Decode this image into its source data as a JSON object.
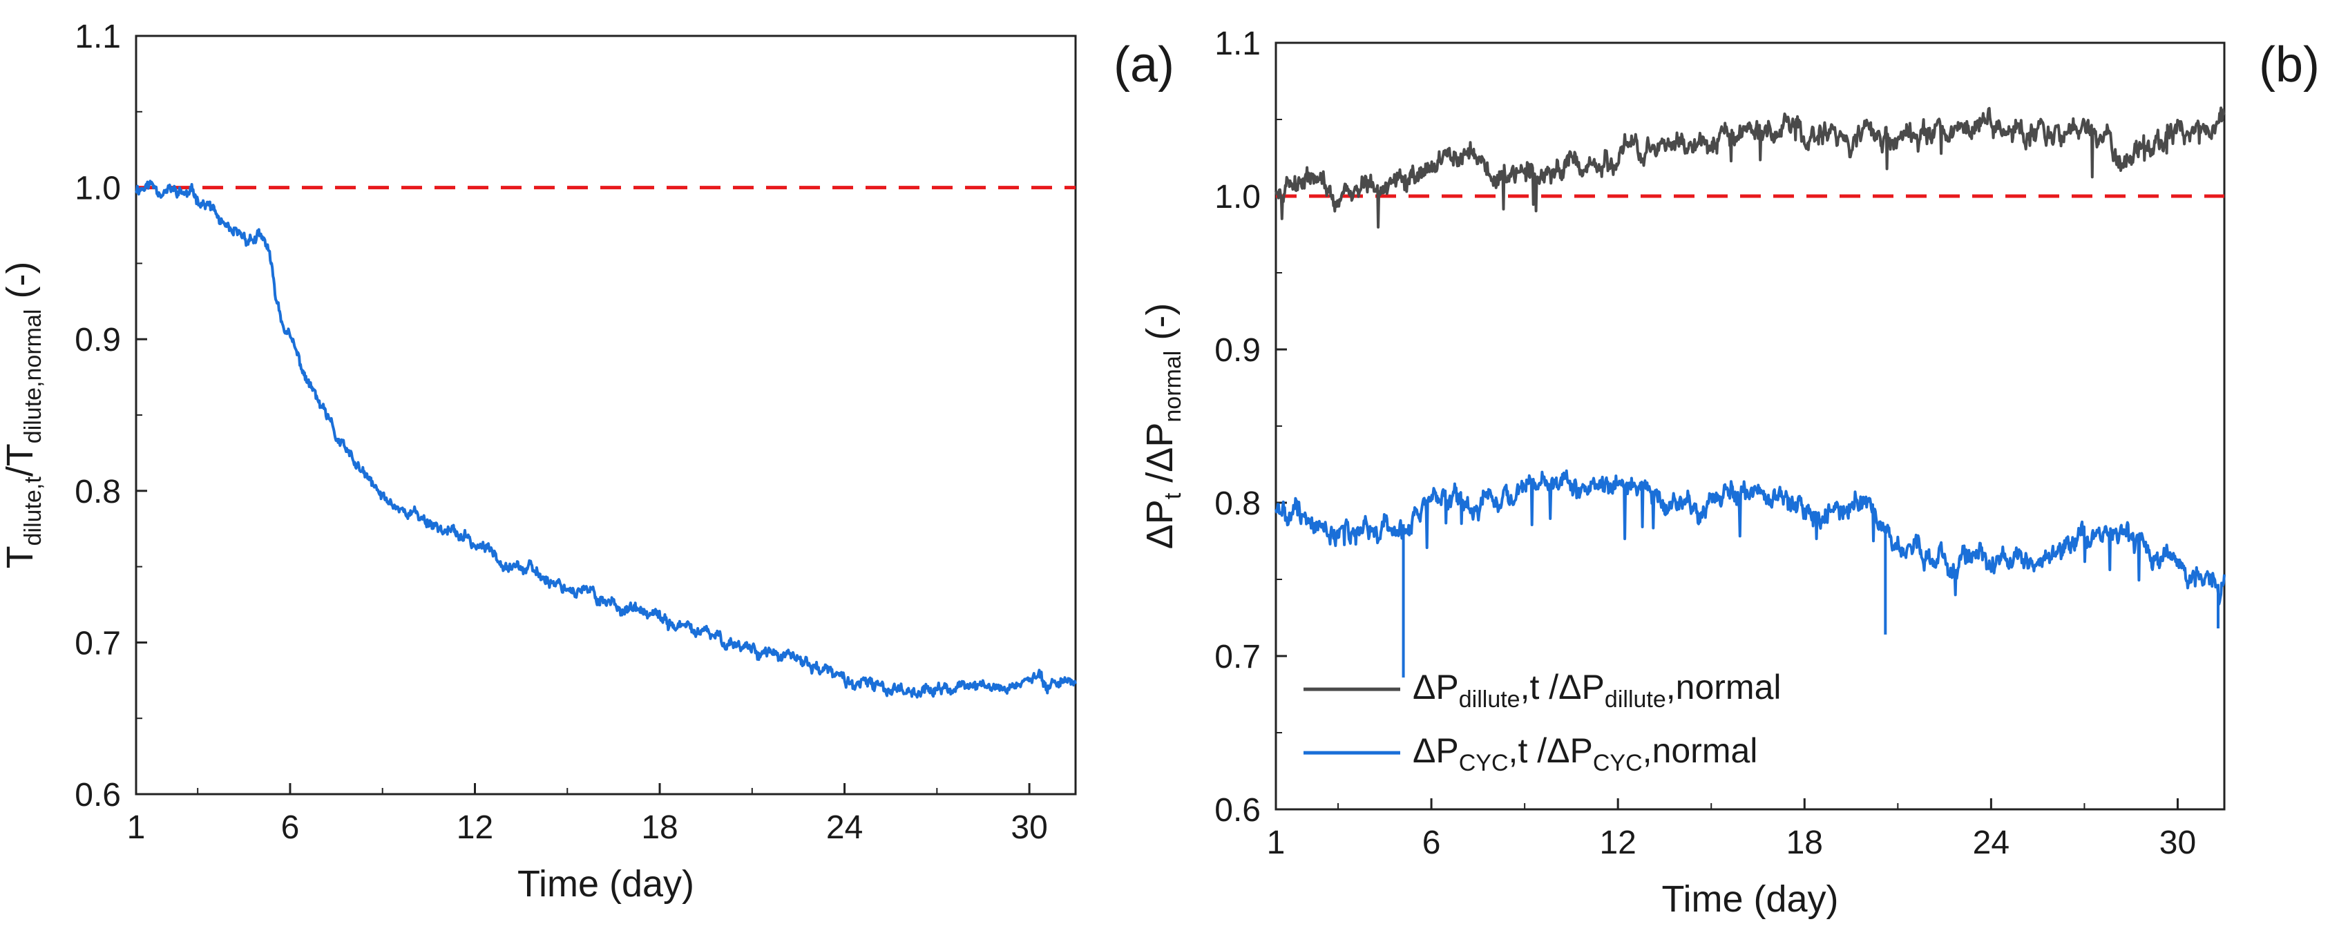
{
  "chart_data": [
    {
      "panel": "(a)",
      "type": "line",
      "xlabel": "Time (day)",
      "ylabel": {
        "main": "T",
        "sub1": "dilute,t",
        "mid": "/T",
        "sub2": "dilute,normal",
        "tail": " (-)"
      },
      "xlim": [
        1,
        31.5
      ],
      "ylim": [
        0.6,
        1.1
      ],
      "xticks": [
        "1",
        "6",
        "12",
        "18",
        "24",
        "30"
      ],
      "yticks": [
        "0.6",
        "0.7",
        "0.8",
        "0.9",
        "1.0",
        "1.1"
      ],
      "reference_line": {
        "y": 1.0,
        "color": "#e8191c",
        "style": "dashed"
      },
      "series": [
        {
          "name": "T_dilute,t / T_dilute,normal",
          "color": "#1a6fd8",
          "x": [
            1,
            1.5,
            2,
            3,
            3.5,
            4,
            4.5,
            5,
            5.3,
            5.5,
            5.7,
            6,
            6.5,
            7,
            7.5,
            8,
            9,
            10,
            11,
            12,
            13,
            14,
            15,
            16,
            17,
            18,
            19,
            20,
            21,
            22,
            23,
            24,
            25,
            26,
            27,
            28,
            29,
            30,
            31.5
          ],
          "y": [
            1.0,
            1.002,
            0.998,
            0.994,
            0.985,
            0.968,
            0.967,
            0.966,
            0.96,
            0.93,
            0.915,
            0.9,
            0.875,
            0.855,
            0.835,
            0.82,
            0.795,
            0.785,
            0.775,
            0.765,
            0.755,
            0.745,
            0.737,
            0.73,
            0.722,
            0.715,
            0.708,
            0.702,
            0.697,
            0.69,
            0.685,
            0.675,
            0.67,
            0.67,
            0.668,
            0.672,
            0.67,
            0.675,
            0.675
          ]
        }
      ]
    },
    {
      "panel": "(b)",
      "type": "line",
      "xlabel": "Time (day)",
      "ylabel": {
        "main": "ΔP",
        "sub1": "t",
        "mid": " /ΔP",
        "sub2": "normal",
        "tail": " (-)"
      },
      "xlim": [
        1,
        31.5
      ],
      "ylim": [
        0.6,
        1.1
      ],
      "xticks": [
        "1",
        "6",
        "12",
        "18",
        "24",
        "30"
      ],
      "yticks": [
        "0.6",
        "0.7",
        "0.8",
        "0.9",
        "1.0",
        "1.1"
      ],
      "reference_line": {
        "y": 1.0,
        "color": "#e8191c",
        "style": "dashed"
      },
      "legend": {
        "placement": "bottom-left",
        "entries": [
          {
            "pre": "ΔP",
            "sub": "dillute",
            "mid": ",t /ΔP",
            "sub2": "dillute",
            "post": ",normal",
            "color": "#4a4a4a"
          },
          {
            "pre": "ΔP",
            "sub": "CYC",
            "mid": ",t /ΔP",
            "sub2": "CYC",
            "post": ",normal",
            "color": "#1a6fd8"
          }
        ]
      },
      "series": [
        {
          "name": "ΔP_dillute,t / ΔP_dillute,normal",
          "color": "#4a4a4a",
          "x": [
            1,
            2,
            3,
            4,
            5,
            6,
            7,
            8,
            9,
            10,
            11,
            12,
            13,
            14,
            15,
            16,
            17,
            18,
            19,
            20,
            21,
            22,
            23,
            24,
            25,
            26,
            27,
            28,
            29,
            30,
            31.5
          ],
          "y": [
            1.008,
            1.01,
            1.0,
            1.005,
            1.01,
            1.02,
            1.03,
            1.015,
            1.01,
            1.015,
            1.02,
            1.025,
            1.03,
            1.035,
            1.035,
            1.04,
            1.045,
            1.04,
            1.04,
            1.04,
            1.035,
            1.04,
            1.045,
            1.05,
            1.045,
            1.04,
            1.045,
            1.025,
            1.03,
            1.04,
            1.05
          ]
        },
        {
          "name": "ΔP_CYC,t / ΔP_CYC,normal",
          "color": "#1a6fd8",
          "x": [
            1,
            2,
            3,
            4,
            5,
            6,
            7,
            8,
            9,
            10,
            11,
            12,
            13,
            14,
            15,
            16,
            17,
            18,
            19,
            20,
            21,
            22,
            23,
            24,
            25,
            26,
            27,
            28,
            29,
            30,
            31.5
          ],
          "y": [
            0.795,
            0.79,
            0.78,
            0.78,
            0.785,
            0.795,
            0.8,
            0.805,
            0.81,
            0.815,
            0.81,
            0.815,
            0.805,
            0.8,
            0.8,
            0.81,
            0.805,
            0.795,
            0.795,
            0.8,
            0.775,
            0.765,
            0.765,
            0.765,
            0.76,
            0.765,
            0.775,
            0.78,
            0.765,
            0.76,
            0.745
          ]
        }
      ],
      "spike_annotations": [
        {
          "x": 5.1,
          "y": 0.686,
          "series": 1
        },
        {
          "x": 20.6,
          "y": 0.714,
          "series": 1
        },
        {
          "x": 31.3,
          "y": 0.718,
          "series": 1
        }
      ]
    }
  ],
  "panel_labels": [
    "(a)",
    "(b)"
  ]
}
